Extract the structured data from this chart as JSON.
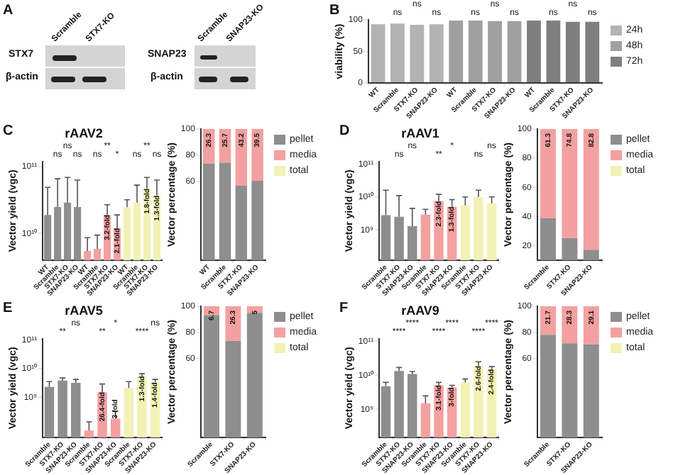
{
  "chart_data": [
    {
      "type": "other",
      "annotations": [
        "A",
        "Scramble",
        "STX7-KO",
        "STX7",
        "β-actin",
        "Scramble",
        "SNAP23-KO",
        "SNAP23",
        "β-actin"
      ]
    },
    {
      "type": "bar",
      "ylabel": "viability (%)",
      "categories": [
        "WT",
        "Scramble",
        "STX7-KO",
        "SNAP23-KO",
        "WT",
        "Scramble",
        "STX7-KO",
        "SNAP23-KO",
        "WT",
        "Scramble",
        "STX7-KO",
        "SNAP23-KO"
      ],
      "series": [
        {
          "name": "24h",
          "color": "#b3b3b3",
          "values": [
            93,
            94,
            92,
            93,
            null,
            null,
            null,
            null,
            null,
            null,
            null,
            null
          ]
        },
        {
          "name": "48h",
          "color": "#a0a0a0",
          "values": [
            null,
            null,
            null,
            null,
            99,
            99,
            98,
            98,
            null,
            null,
            null,
            null
          ]
        },
        {
          "name": "72h",
          "color": "#7f7f7f",
          "values": [
            null,
            null,
            null,
            null,
            null,
            null,
            null,
            null,
            99,
            99,
            97,
            97
          ]
        }
      ],
      "ylim": [
        0,
        100
      ],
      "yticks": [
        0,
        50,
        100
      ],
      "legend": "right",
      "annotations": [
        "B",
        "ns",
        "ns",
        "ns",
        "ns",
        "ns",
        "ns",
        "ns",
        "ns",
        "ns"
      ]
    },
    {
      "type": "bar",
      "title": "rAAV2",
      "ylabel": "Vector yield (vgc)",
      "log": true,
      "categories": [
        "WT",
        "Scramble",
        "STX7-KO",
        "SNAP23-KO",
        "WT",
        "Scramble",
        "STX7-KO",
        "SNAP23-KO",
        "WT",
        "Scramble",
        "STX7-KO",
        "SNAP23-KO"
      ],
      "values": [
        19000000000.0,
        25000000000.0,
        29000000000.0,
        25000000000.0,
        5500000000.0,
        5900000000.0,
        19000000000.0,
        12000000000.0,
        25000000000.0,
        29000000000.0,
        47000000000.0,
        37000000000.0
      ],
      "colors": [
        "#8e8e8e",
        "#8e8e8e",
        "#8e8e8e",
        "#8e8e8e",
        "#f4a0a0",
        "#f4a0a0",
        "#f4a0a0",
        "#f4a0a0",
        "#f2f2b5",
        "#f2f2b5",
        "#f2f2b5",
        "#f2f2b5"
      ],
      "errors": [
        [
          19000000000.0,
          49000000000.0
        ],
        [
          25000000000.0,
          66000000000.0
        ],
        [
          29000000000.0,
          69000000000.0
        ],
        [
          25000000000.0,
          63000000000.0
        ],
        [
          5500000000.0,
          8700000000.0
        ],
        [
          5900000000.0,
          9500000000.0
        ],
        [
          19000000000.0,
          27000000000.0
        ],
        [
          12000000000.0,
          19000000000.0
        ],
        [
          25000000000.0,
          32000000000.0
        ],
        [
          29000000000.0,
          53000000000.0
        ],
        [
          47000000000.0,
          69000000000.0
        ],
        [
          37000000000.0,
          63000000000.0
        ]
      ],
      "ylim": [
        4000000000.0,
        120000000000.0
      ],
      "yticks": [
        {
          "value": 10000000000.0,
          "label": "10¹⁰"
        },
        {
          "value": 100000000000.0,
          "label": "10¹¹"
        }
      ],
      "annotations": [
        "C",
        "ns",
        "ns",
        "ns",
        "ns",
        "**",
        "*",
        "ns",
        "**",
        "ns",
        {
          "text": "3.2-fold",
          "y": 19000000000.0
        },
        {
          "text": "2.1-fold",
          "y": 12000000000.0
        },
        {
          "text": "1.8-fold",
          "y": 47000000000.0
        },
        {
          "text": "1.3-fold",
          "y": 37000000000.0
        }
      ]
    },
    {
      "type": "bar",
      "stacked": true,
      "ylabel": "Vector percentage (%)",
      "categories": [
        "WT",
        "Scramble",
        "STX7-KO",
        "SNAP23-KO"
      ],
      "series": [
        {
          "name": "pellet",
          "color": "#8e8e8e",
          "values": [
            73.7,
            74.3,
            56.8,
            60.5
          ]
        },
        {
          "name": "media",
          "color": "#f4a0a0",
          "values": [
            26.3,
            25.7,
            43.2,
            39.5
          ],
          "value_labels": [
            "26.3",
            "25.7",
            "43.2",
            "39.5"
          ]
        },
        {
          "name": "total",
          "color": "#f2f2b5",
          "values": [
            null,
            null,
            null,
            null
          ]
        }
      ],
      "ylim": [
        0,
        100
      ],
      "yticks": [
        60,
        80,
        100
      ],
      "legend": "right"
    },
    {
      "type": "bar",
      "title": "rAAV1",
      "ylabel": "Vector yield (vgc)",
      "log": true,
      "categories": [
        "Scramble",
        "STX7-KO",
        "SNAP23-KO",
        "Scramble",
        "STX7-KO",
        "SNAP23-KO",
        "Scramble",
        "STX7-KO",
        "SNAP23-KO"
      ],
      "values": [
        2800000000.0,
        2500000000.0,
        1300000000.0,
        2900000000.0,
        7400000000.0,
        5000000000.0,
        5500000000.0,
        10000000000.0,
        6300000000.0
      ],
      "colors": [
        "#8e8e8e",
        "#8e8e8e",
        "#8e8e8e",
        "#f4a0a0",
        "#f4a0a0",
        "#f4a0a0",
        "#f2f2b5",
        "#f2f2b5",
        "#f2f2b5"
      ],
      "errors": [
        [
          2800000000.0,
          16000000000.0
        ],
        [
          2500000000.0,
          11000000000.0
        ],
        [
          1300000000.0,
          4500000000.0
        ],
        [
          2900000000.0,
          4200000000.0
        ],
        [
          7400000000.0,
          12000000000.0
        ],
        [
          5000000000.0,
          8300000000.0
        ],
        [
          5500000000.0,
          10000000000.0
        ],
        [
          10000000000.0,
          16000000000.0
        ],
        [
          6300000000.0,
          10000000000.0
        ]
      ],
      "ylim": [
        120000000.0,
        120000000000.0
      ],
      "yticks": [
        {
          "value": 1000000000.0,
          "label": "10⁹"
        },
        {
          "value": 10000000000.0,
          "label": "10¹⁰"
        },
        {
          "value": 100000000000.0,
          "label": "10¹¹"
        }
      ],
      "annotations": [
        "D",
        "ns",
        "ns",
        "**",
        "*",
        "ns",
        "ns",
        {
          "text": "2.3-fold",
          "y": 7400000000.0
        },
        {
          "text": "1.3-fold",
          "y": 5000000000.0
        }
      ]
    },
    {
      "type": "bar",
      "stacked": true,
      "ylabel": "Vector percentage (%)",
      "categories": [
        "Scramble",
        "STX7-KO",
        "SNAP23-KO"
      ],
      "series": [
        {
          "name": "pellet",
          "color": "#8e8e8e",
          "values": [
            38.7,
            25.2,
            17.2
          ]
        },
        {
          "name": "media",
          "color": "#f4a0a0",
          "values": [
            61.3,
            74.8,
            82.8
          ],
          "value_labels": [
            "61.3",
            "74.8",
            "82.8"
          ]
        },
        {
          "name": "total",
          "color": "#f2f2b5",
          "values": [
            null,
            null,
            null
          ]
        }
      ],
      "ylim": [
        10,
        100
      ],
      "yticks": [
        20,
        40,
        60,
        80,
        100
      ],
      "legend": "right"
    },
    {
      "type": "bar",
      "title": "rAAV5",
      "ylabel": "Vector yield (vgc)",
      "log": true,
      "categories": [
        "Scramble",
        "STX7-KO",
        "SNAP23-KO",
        "Scramble",
        "STX7-KO",
        "SNAP23-KO",
        "Scramble",
        "STX7-KO",
        "SNAP23-KO"
      ],
      "values": [
        2300000000.0,
        3800000000.0,
        3200000000.0,
        70000000.0,
        1500000000.0,
        180000000.0,
        2100000000.0,
        5400000000.0,
        3300000000.0
      ],
      "colors": [
        "#8e8e8e",
        "#8e8e8e",
        "#8e8e8e",
        "#f4a0a0",
        "#f4a0a0",
        "#f4a0a0",
        "#f2f2b5",
        "#f2f2b5",
        "#f2f2b5"
      ],
      "errors": [
        [
          2300000000.0,
          3500000000.0
        ],
        [
          3800000000.0,
          4700000000.0
        ],
        [
          3200000000.0,
          4200000000.0
        ],
        [
          70000000.0,
          140000000.0
        ],
        [
          1500000000.0,
          2900000000.0
        ],
        [
          180000000.0,
          330000000.0
        ],
        [
          2100000000.0,
          3500000000.0
        ],
        [
          5400000000.0,
          6600000000.0
        ],
        [
          3300000000.0,
          4200000000.0
        ]
      ],
      "ylim": [
        40000000.0,
        110000000000.0
      ],
      "yticks": [
        {
          "value": 1000000000.0,
          "label": "10⁹"
        },
        {
          "value": 10000000000.0,
          "label": "10¹⁰"
        },
        {
          "value": 100000000000.0,
          "label": "10¹¹"
        }
      ],
      "annotations": [
        "E",
        "**",
        "ns",
        "**",
        "*",
        "****",
        "ns",
        {
          "text": "26.4-fold",
          "y": 1500000000.0
        },
        {
          "text": "3-fold",
          "y": 180000000.0
        },
        {
          "text": "1.3-fold",
          "y": 5400000000.0
        },
        {
          "text": "1.4-fold",
          "y": 3300000000.0
        }
      ]
    },
    {
      "type": "bar",
      "stacked": true,
      "ylabel": "Vector percentage (%)",
      "categories": [
        "Scramble",
        "STX7-KO",
        "SNAP23-KO"
      ],
      "series": [
        {
          "name": "pellet",
          "color": "#8e8e8e",
          "values": [
            93.3,
            73.7,
            95
          ]
        },
        {
          "name": "media",
          "color": "#f4a0a0",
          "values": [
            6.7,
            26.3,
            5
          ],
          "value_labels": [
            "6.7",
            "26.3",
            "5"
          ]
        },
        {
          "name": "total",
          "color": "#f2f2b5",
          "values": [
            null,
            null,
            null
          ]
        }
      ],
      "ylim": [
        0,
        100
      ],
      "yticks": [
        60,
        80,
        100
      ],
      "legend": "right"
    },
    {
      "type": "bar",
      "title": "rAAV9",
      "ylabel": "Vector yield (vgc)",
      "log": true,
      "categories": [
        "Scramble",
        "STX7-KO",
        "SNAP23-KO",
        "Scramble",
        "STX7-KO",
        "SNAP23-KO",
        "Scramble",
        "STX7-KO",
        "SNAP23-KO"
      ],
      "values": [
        4800000000.0,
        13500000000.0,
        11000000000.0,
        1500000000.0,
        5100000000.0,
        4400000000.0,
        6200000000.0,
        19000000000.0,
        15000000000.0
      ],
      "colors": [
        "#8e8e8e",
        "#8e8e8e",
        "#8e8e8e",
        "#f4a0a0",
        "#f4a0a0",
        "#f4a0a0",
        "#f2f2b5",
        "#f2f2b5",
        "#f2f2b5"
      ],
      "errors": [
        [
          4800000000.0,
          6200000000.0
        ],
        [
          13500000000.0,
          17000000000.0
        ],
        [
          11000000000.0,
          13000000000.0
        ],
        [
          1500000000.0,
          2500000000.0
        ],
        [
          5100000000.0,
          6200000000.0
        ],
        [
          4400000000.0,
          5100000000.0
        ],
        [
          6200000000.0,
          7800000000.0
        ],
        [
          19000000000.0,
          25000000000.0
        ],
        [
          15000000000.0,
          18000000000.0
        ]
      ],
      "ylim": [
        150000000.0,
        120000000000.0
      ],
      "yticks": [
        {
          "value": 1000000000.0,
          "label": "10⁹"
        },
        {
          "value": 10000000000.0,
          "label": "10¹⁰"
        },
        {
          "value": 100000000000.0,
          "label": "10¹¹"
        }
      ],
      "annotations": [
        "F",
        "****",
        "****",
        "****",
        "****",
        "****",
        "****",
        {
          "text": "3.1-fold",
          "y": 5100000000.0
        },
        {
          "text": "3-fold",
          "y": 4400000000.0
        },
        {
          "text": "2.6-fold",
          "y": 19000000000.0
        },
        {
          "text": "2.4-fold",
          "y": 15000000000.0
        }
      ]
    },
    {
      "type": "bar",
      "stacked": true,
      "ylabel": "Vector percentage (%)",
      "categories": [
        "Scramble",
        "STX7-KO",
        "SNAP23-KO"
      ],
      "series": [
        {
          "name": "pellet",
          "color": "#8e8e8e",
          "values": [
            78.3,
            71.7,
            70.9
          ]
        },
        {
          "name": "media",
          "color": "#f4a0a0",
          "values": [
            21.7,
            28.3,
            29.1
          ],
          "value_labels": [
            "21.7",
            "28.3",
            "29.1"
          ]
        },
        {
          "name": "total",
          "color": "#f2f2b5",
          "values": [
            null,
            null,
            null
          ]
        }
      ],
      "ylim": [
        0,
        100
      ],
      "yticks": [
        60,
        80,
        100
      ],
      "legend": "right"
    }
  ]
}
